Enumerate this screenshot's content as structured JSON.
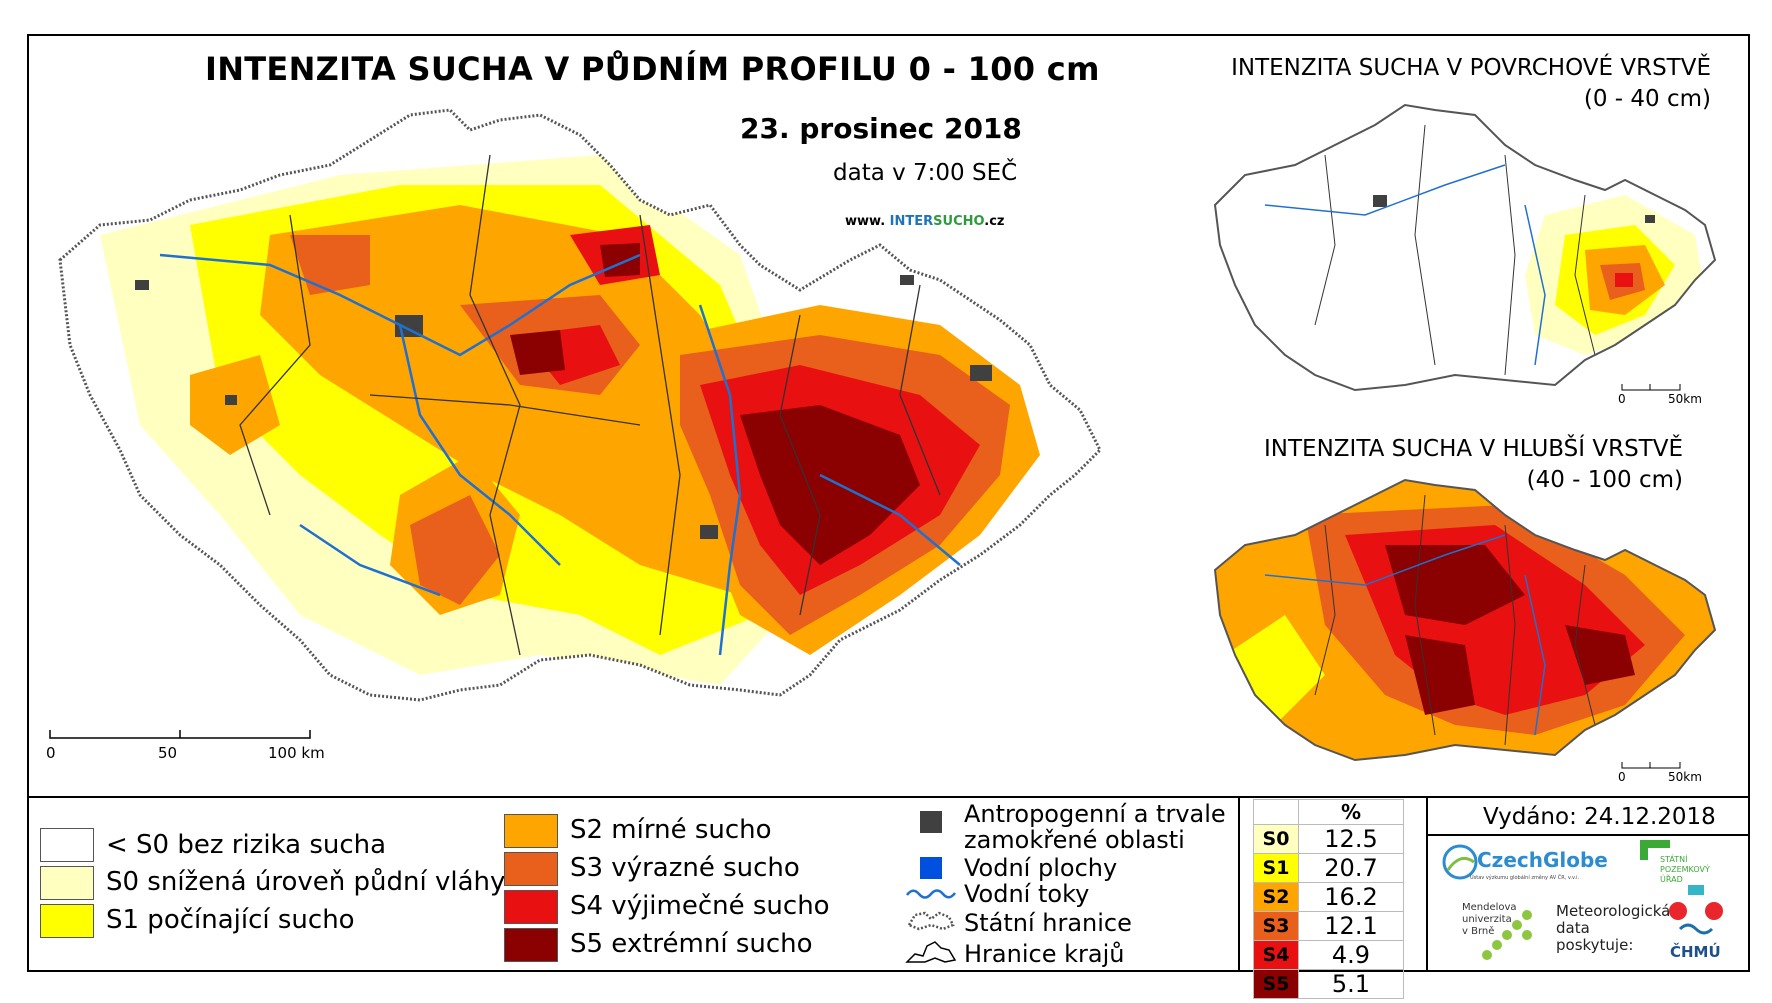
{
  "main_map": {
    "title": "INTENZITA SUCHA V PŮDNÍM PROFILU 0 - 100 cm",
    "date": "23. prosinec 2018",
    "time": "data v 7:00 SEČ",
    "website_prefix": "www. ",
    "website_inter": "INTER",
    "website_sucho": "SUCHO",
    "website_suffix": ".cz",
    "scalebar": {
      "ticks": [
        "0",
        "50",
        "100 km"
      ]
    }
  },
  "inset_surface": {
    "title": "INTENZITA SUCHA V POVRCHOVÉ VRSTVĚ",
    "subtitle": "(0 - 40 cm)",
    "scalebar": {
      "ticks": [
        "0",
        "50km"
      ]
    }
  },
  "inset_deep": {
    "title": "INTENZITA SUCHA V HLUBŠÍ VRSTVĚ",
    "subtitle": "(40 - 100 cm)",
    "scalebar": {
      "ticks": [
        "0",
        "50km"
      ]
    }
  },
  "legend": {
    "classes": [
      {
        "code": "< S0",
        "label": "< S0 bez rizika sucha",
        "color": "#ffffff"
      },
      {
        "code": "S0",
        "label": "S0 snížená úroveň půdní vláhy",
        "color": "#ffffc0"
      },
      {
        "code": "S1",
        "label": "S1 počínající sucho",
        "color": "#ffff00"
      },
      {
        "code": "S2",
        "label": "S2 mírné sucho",
        "color": "#ffa500"
      },
      {
        "code": "S3",
        "label": "S3 výrazné sucho",
        "color": "#e8601c"
      },
      {
        "code": "S4",
        "label": "S4 výjimečné sucho",
        "color": "#e81010"
      },
      {
        "code": "S5",
        "label": "S5 extrémní sucho",
        "color": "#8b0000"
      }
    ],
    "features": {
      "anthropogenic": "Antropogenní a trvale zamokřené oblasti",
      "anthropogenic_line1": "Antropogenní a trvale",
      "anthropogenic_line2": "zamokřené oblasti",
      "water_bodies": "Vodní plochy",
      "rivers": "Vodní toky",
      "state_border": "Státní hranice",
      "region_border": "Hranice krajů"
    },
    "feature_colors": {
      "anthropogenic": "#404040",
      "water": "#0050e0",
      "river": "#2070d0"
    }
  },
  "statistics": {
    "header": "%",
    "rows": [
      {
        "code": "S0",
        "value": "12.5",
        "color": "#ffffc0"
      },
      {
        "code": "S1",
        "value": "20.7",
        "color": "#ffff00"
      },
      {
        "code": "S2",
        "value": "16.2",
        "color": "#ffa500"
      },
      {
        "code": "S3",
        "value": "12.1",
        "color": "#e8601c"
      },
      {
        "code": "S4",
        "value": "4.9",
        "color": "#e81010"
      },
      {
        "code": "S5",
        "value": "5.1",
        "color": "#8b0000"
      }
    ]
  },
  "issued": "Vydáno: 24.12.2018",
  "logos": {
    "czechglobe": "CzechGlobe",
    "czechglobe_sub": "Ústav výzkumu globální změny AV ČR, v.v.i.",
    "spu_line1": "STÁTNÍ",
    "spu_line2": "POZEMKOVÝ",
    "spu_line3": "ÚŘAD",
    "mendel_line1": "Mendelova",
    "mendel_line2": "univerzita",
    "mendel_line3": "v Brně",
    "chmu_text_line1": "Meteorologická",
    "chmu_text_line2": "data",
    "chmu_text_line3": "poskytuje:",
    "chmu": "ČHMÚ"
  }
}
